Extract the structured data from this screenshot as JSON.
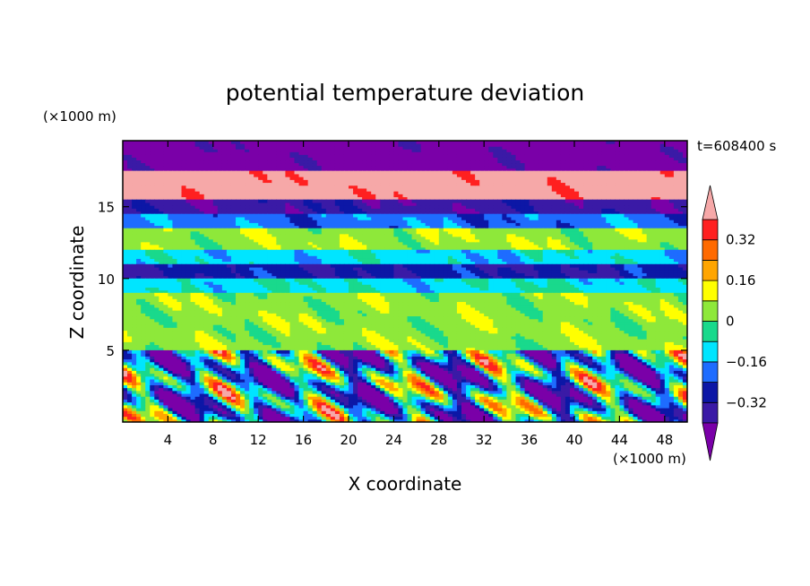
{
  "chart_data": {
    "type": "heatmap",
    "title": "potential temperature deviation",
    "time_label": "t=608400 s",
    "xlabel": "X coordinate",
    "ylabel": "Z coordinate",
    "x_unit": "(×1000 m)",
    "y_unit": "(×1000 m)",
    "xlim": [
      0,
      50
    ],
    "ylim": [
      0,
      19.6
    ],
    "x_ticks": [
      4,
      8,
      12,
      16,
      20,
      24,
      28,
      32,
      36,
      40,
      44,
      48
    ],
    "y_ticks": [
      5,
      10,
      15
    ],
    "colorbar": {
      "levels": [
        -0.4,
        -0.32,
        -0.24,
        -0.16,
        -0.08,
        0,
        0.08,
        0.16,
        0.24,
        0.32,
        0.4
      ],
      "tick_values": [
        0.32,
        0.16,
        0,
        -0.16,
        -0.32
      ],
      "tick_labels": [
        "0.32",
        "0.16",
        "0",
        "−0.16",
        "−0.32"
      ],
      "colors": [
        "#7a00a8",
        "#3a1aa6",
        "#0c17a6",
        "#1e6cff",
        "#00e5ff",
        "#19d98c",
        "#8ee83a",
        "#ffff00",
        "#ffa500",
        "#ff6a00",
        "#ff2020",
        "#f6a8a8"
      ],
      "extend": "both"
    },
    "field_bands": [
      {
        "z": [
          17.5,
          19.6
        ],
        "value": -0.45
      },
      {
        "z": [
          15.5,
          17.5
        ],
        "value": 0.45
      },
      {
        "z": [
          14.5,
          15.5
        ],
        "value": -0.36
      },
      {
        "z": [
          13.5,
          14.5
        ],
        "value": -0.2
      },
      {
        "z": [
          12.0,
          13.5
        ],
        "value": 0.05
      },
      {
        "z": [
          11.0,
          12.0
        ],
        "value": -0.12
      },
      {
        "z": [
          10.0,
          11.0
        ],
        "value": -0.3
      },
      {
        "z": [
          9.0,
          10.0
        ],
        "value": -0.1
      },
      {
        "z": [
          5.0,
          9.0
        ],
        "value": 0.04
      },
      {
        "z": [
          0,
          5.0
        ],
        "value": -0.15
      }
    ]
  }
}
